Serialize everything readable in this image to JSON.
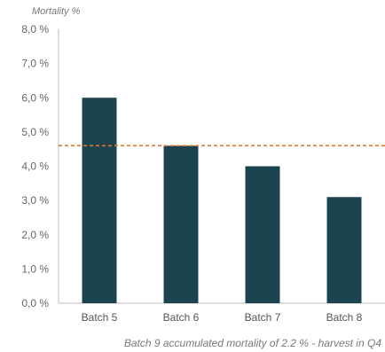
{
  "chart_data": {
    "type": "bar",
    "ylabel": "Mortality %",
    "categories": [
      "Batch 5",
      "Batch 6",
      "Batch 7",
      "Batch 8"
    ],
    "values": [
      6.0,
      4.6,
      4.0,
      3.1
    ],
    "ylim": [
      0,
      8
    ],
    "yticks": [
      0,
      1,
      2,
      3,
      4,
      5,
      6,
      7,
      8
    ],
    "ytick_labels": [
      "0,0 %",
      "1,0 %",
      "2,0 %",
      "3,0 %",
      "4,0 %",
      "5,0 %",
      "6,0 %",
      "7,0 %",
      "8,0 %"
    ],
    "reference_line": 4.6,
    "colors": {
      "bar": "#1c4450",
      "reference_line": "#e07a2a",
      "axis": "#bfbfbf"
    },
    "grid": false,
    "footnote": "Batch 9 accumulated mortality of 2.2 % - harvest in Q4"
  }
}
